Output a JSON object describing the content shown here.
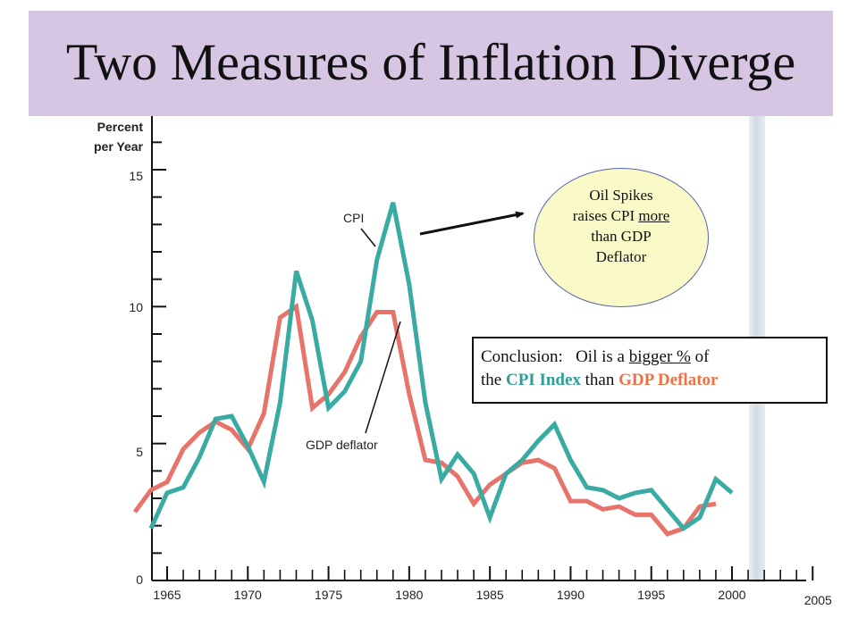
{
  "slide": {
    "title": "Two Measures of Inflation Diverge"
  },
  "callout": {
    "lines": [
      "Oil Spikes",
      "raises CPI ",
      "more",
      "than GDP",
      "Deflator"
    ]
  },
  "conclusion": {
    "line1_prefix": "Conclusion:   Oil is a ",
    "line1_underlined": "bigger %",
    "line1_suffix": " of",
    "line2_prefix": "the ",
    "line2_cpi": "CPI Index",
    "line2_middle": " than ",
    "line2_gdp": "GDP Deflator"
  },
  "colors": {
    "title_band": "#d6c6e4",
    "cpi": "#3aaba3",
    "gdp_deflator": "#e8736a",
    "callout_fill": "#fafac9"
  },
  "chart_data": {
    "type": "line",
    "ylabel_lines": [
      "Percent",
      "per Year"
    ],
    "ylim": [
      0,
      17
    ],
    "xlim": [
      1964,
      2005
    ],
    "y_tick_labels": [
      "0",
      "5",
      "10",
      "15"
    ],
    "y_tick_values": [
      0,
      5,
      10,
      15
    ],
    "x_tick_labels": [
      "1965",
      "1970",
      "1975",
      "1980",
      "1985",
      "1990",
      "1995",
      "2000",
      "2005"
    ],
    "x_tick_values": [
      1965,
      1970,
      1975,
      1980,
      1985,
      1990,
      1995,
      2000,
      2005
    ],
    "series": [
      {
        "name": "CPI",
        "x": [
          1964,
          1965,
          1966,
          1967,
          1968,
          1969,
          1970,
          1971,
          1972,
          1973,
          1974,
          1975,
          1976,
          1977,
          1978,
          1979,
          1980,
          1981,
          1982,
          1983,
          1984,
          1985,
          1986,
          1987,
          1988,
          1989,
          1990,
          1991,
          1992,
          1993,
          1994,
          1995,
          1996,
          1997,
          1998,
          1999,
          2000
        ],
        "values": [
          1.9,
          3.2,
          3.4,
          4.5,
          5.9,
          6.0,
          4.9,
          3.6,
          6.5,
          11.3,
          9.5,
          6.3,
          6.9,
          8.0,
          11.7,
          13.8,
          10.8,
          6.5,
          3.7,
          4.6,
          3.9,
          2.3,
          3.9,
          4.4,
          5.1,
          5.7,
          4.4,
          3.4,
          3.3,
          3.0,
          3.2,
          3.3,
          2.6,
          1.9,
          2.3,
          3.7,
          3.2
        ]
      },
      {
        "name": "GDP deflator",
        "x": [
          1963,
          1964,
          1965,
          1966,
          1967,
          1968,
          1969,
          1970,
          1971,
          1972,
          1973,
          1974,
          1975,
          1976,
          1977,
          1978,
          1979,
          1980,
          1981,
          1982,
          1983,
          1984,
          1985,
          1986,
          1987,
          1988,
          1989,
          1990,
          1991,
          1992,
          1993,
          1994,
          1995,
          1996,
          1997,
          1998,
          1999
        ],
        "values": [
          2.5,
          3.3,
          3.6,
          4.8,
          5.4,
          5.8,
          5.5,
          4.8,
          6.1,
          9.6,
          10.0,
          6.3,
          6.8,
          7.6,
          8.9,
          9.8,
          9.8,
          6.8,
          4.4,
          4.3,
          3.8,
          2.8,
          3.5,
          3.9,
          4.3,
          4.4,
          4.1,
          2.9,
          2.9,
          2.6,
          2.7,
          2.4,
          2.4,
          1.7,
          1.9,
          2.7,
          2.8
        ]
      }
    ],
    "annotations": [
      "CPI",
      "GDP deflator"
    ]
  }
}
